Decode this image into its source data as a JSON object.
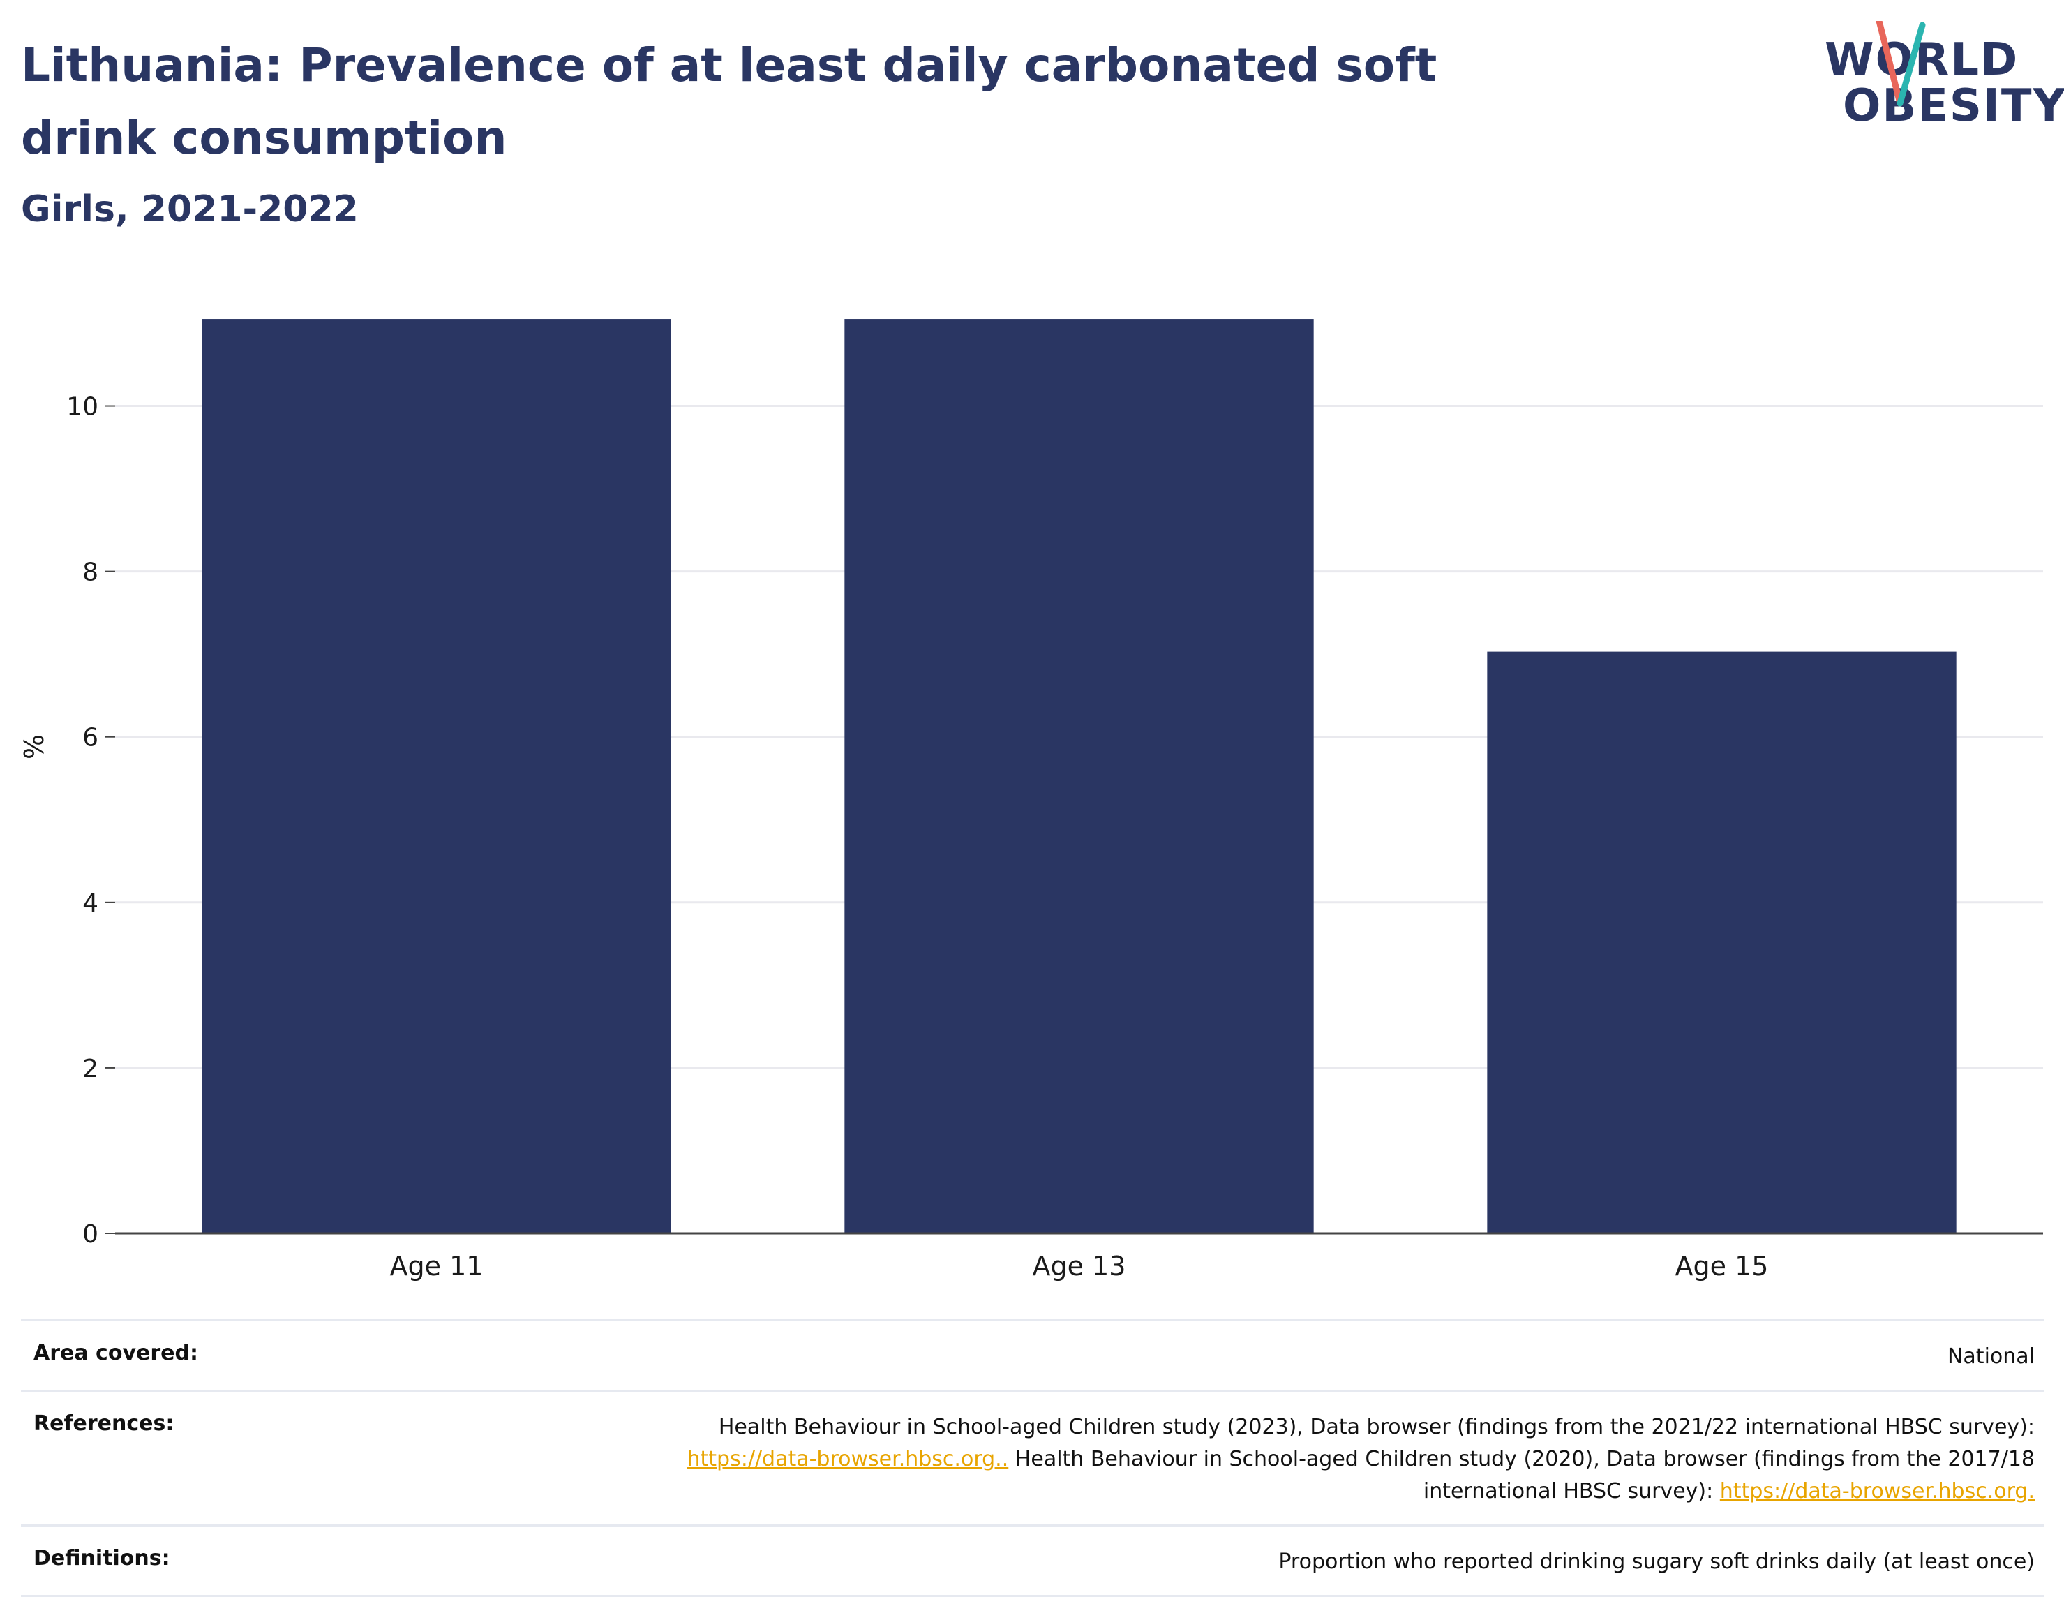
{
  "header": {
    "title": "Lithuania: Prevalence of at least daily carbonated soft drink consumption",
    "subtitle": "Girls, 2021-2022"
  },
  "logo": {
    "line1": "WORLD",
    "line2": "OBESITY",
    "accent_colors": [
      "#2bb5b0",
      "#e8665a"
    ]
  },
  "chart_data": {
    "type": "bar",
    "categories": [
      "Age 11",
      "Age 13",
      "Age 15"
    ],
    "values": [
      11.05,
      11.05,
      7.03
    ],
    "ylabel": "%",
    "xlabel": "",
    "ylim": [
      0,
      11.7
    ],
    "yticks": [
      0,
      2,
      4,
      6,
      8,
      10
    ],
    "grid": true,
    "bar_color": "#2a3663"
  },
  "footer": {
    "area_label": "Area covered:",
    "area_value": "National",
    "references_label": "References:",
    "references_text1": "Health Behaviour in School-aged Children study (2023), Data browser (findings from the 2021/22 international HBSC survey):",
    "references_link1": "https://data-browser.hbsc.org..",
    "references_text2": "Health Behaviour in School-aged Children study (2020), Data browser (findings from the 2017/18 international HBSC survey):",
    "references_link2": "https://data-browser.hbsc.org.",
    "definitions_label": "Definitions:",
    "definitions_value": "Proportion who reported drinking sugary soft drinks daily (at least once)"
  }
}
